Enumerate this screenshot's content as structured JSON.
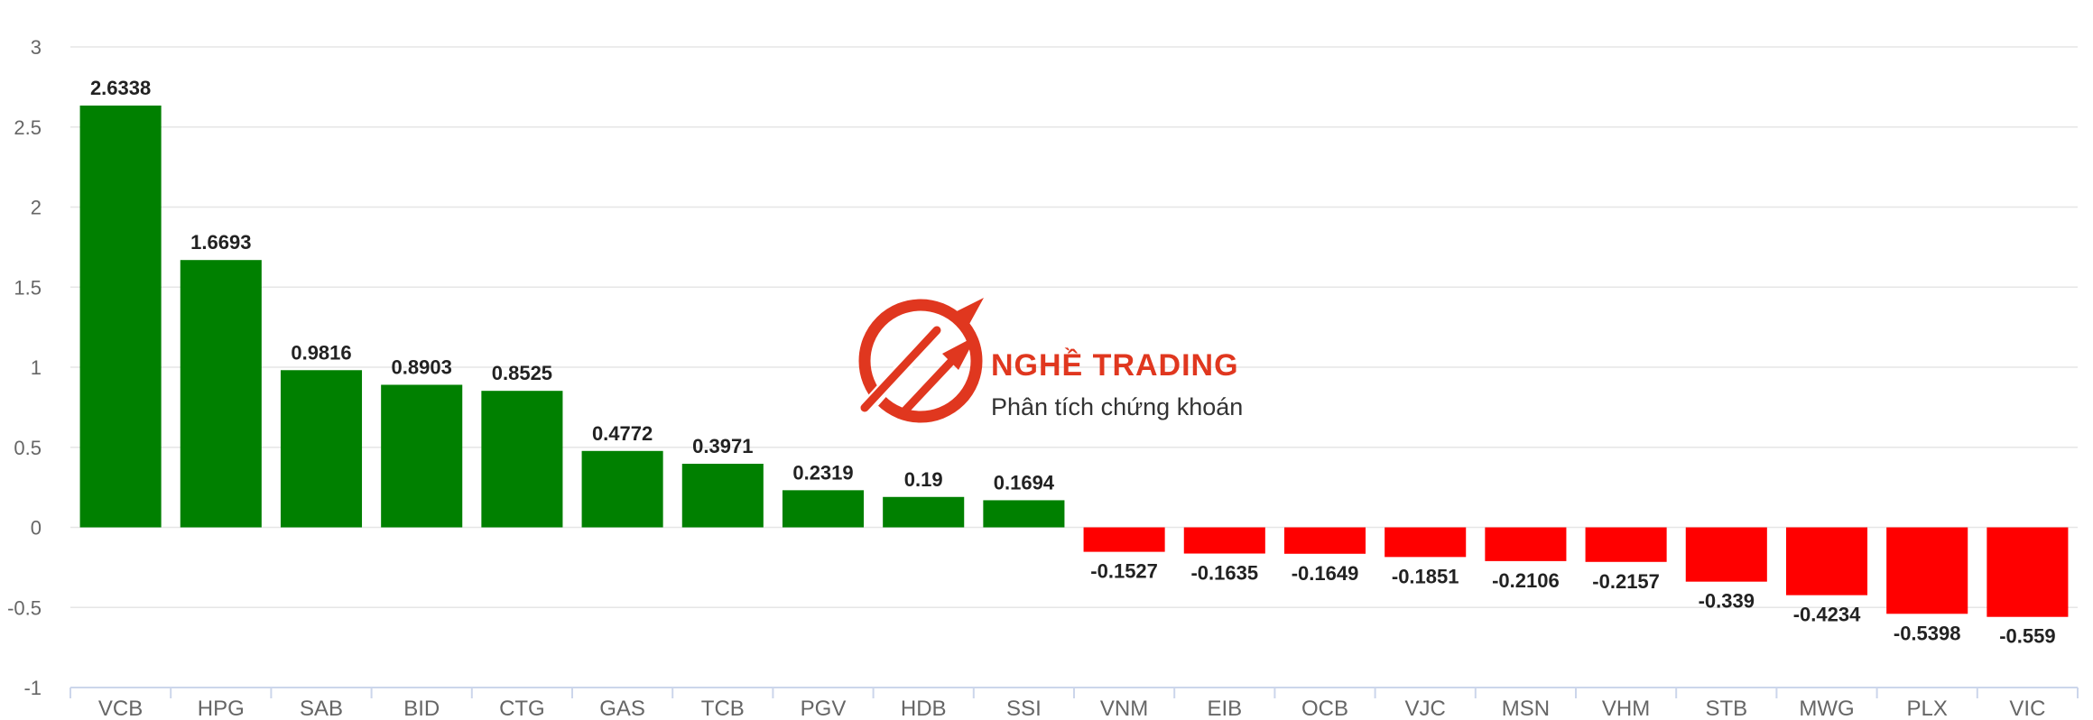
{
  "chart_data": {
    "type": "bar",
    "categories": [
      "VCB",
      "HPG",
      "SAB",
      "BID",
      "CTG",
      "GAS",
      "TCB",
      "PGV",
      "HDB",
      "SSI",
      "VNM",
      "EIB",
      "OCB",
      "VJC",
      "MSN",
      "VHM",
      "STB",
      "MWG",
      "PLX",
      "VIC"
    ],
    "values": [
      2.6338,
      1.6693,
      0.9816,
      0.8903,
      0.8525,
      0.4772,
      0.3971,
      0.2319,
      0.19,
      0.1694,
      -0.1527,
      -0.1635,
      -0.1649,
      -0.1851,
      -0.2106,
      -0.2157,
      -0.339,
      -0.4234,
      -0.5398,
      -0.559
    ],
    "data_labels": [
      "2.6338",
      "1.6693",
      "0.9816",
      "0.8903",
      "0.8525",
      "0.4772",
      "0.3971",
      "0.2319",
      "0.19",
      "0.1694",
      "-0.1527",
      "-0.1635",
      "-0.1649",
      "-0.1851",
      "-0.2106",
      "-0.2157",
      "-0.339",
      "-0.4234",
      "-0.5398",
      "-0.559"
    ],
    "ylim": [
      -1,
      3
    ],
    "yticks": [
      -1,
      -0.5,
      0,
      0.5,
      1,
      1.5,
      2,
      2.5,
      3
    ],
    "ytick_labels": [
      "-1",
      "-0.5",
      "0",
      "0.5",
      "1",
      "1.5",
      "2",
      "2.5",
      "3"
    ],
    "grid": true,
    "colors": {
      "positive": "#008000",
      "negative": "#ff0000",
      "grid": "#e6e6e6",
      "axis": "#ccd6eb"
    }
  },
  "watermark": {
    "title": "NGHỀ TRADING",
    "subtitle": "Phân tích chứng khoán",
    "color": "#e0371f"
  }
}
